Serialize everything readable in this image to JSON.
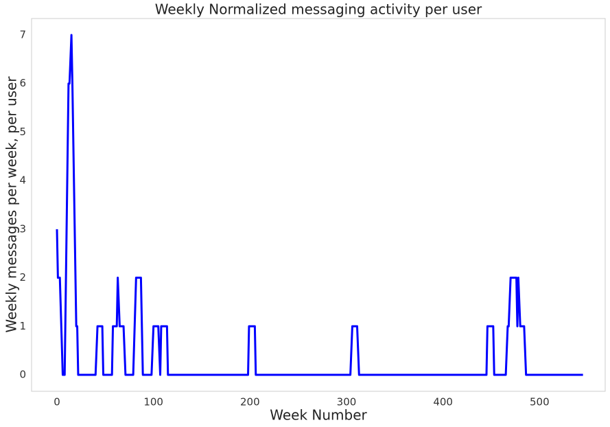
{
  "chart_data": {
    "type": "line",
    "title": "Weekly Normalized messaging activity per user",
    "x_label": "Week Number",
    "y_label": "Weekly messages per week, per user",
    "x": [
      0,
      1,
      3,
      6,
      8,
      12,
      13,
      15,
      16,
      20,
      21,
      22,
      40,
      42,
      47,
      48,
      57,
      58,
      62,
      63,
      65,
      69,
      71,
      79,
      82,
      87,
      89,
      98,
      100,
      105,
      107,
      108,
      114,
      115,
      198,
      199,
      205,
      206,
      304,
      306,
      311,
      313,
      445,
      446,
      452,
      453,
      465,
      467,
      468,
      470,
      476,
      477,
      478,
      480,
      484,
      486,
      545
    ],
    "values": [
      3,
      2,
      2,
      0,
      0,
      6,
      6,
      7,
      6,
      1,
      1,
      0,
      0,
      1,
      1,
      0,
      0,
      1,
      1,
      2,
      1,
      1,
      0,
      0,
      2,
      2,
      0,
      0,
      1,
      1,
      0,
      1,
      1,
      0,
      0,
      1,
      1,
      0,
      0,
      1,
      1,
      0,
      0,
      1,
      1,
      0,
      0,
      1,
      1,
      2,
      2,
      1,
      2,
      1,
      1,
      0,
      0
    ],
    "color": "#0000ff",
    "xlim": [
      -26.3,
      568
    ],
    "ylim": [
      -0.34,
      7.34
    ],
    "xticks": [
      0,
      100,
      200,
      300,
      400,
      500
    ],
    "yticks": [
      0,
      1,
      2,
      3,
      4,
      5,
      6,
      7
    ],
    "grid": false
  }
}
